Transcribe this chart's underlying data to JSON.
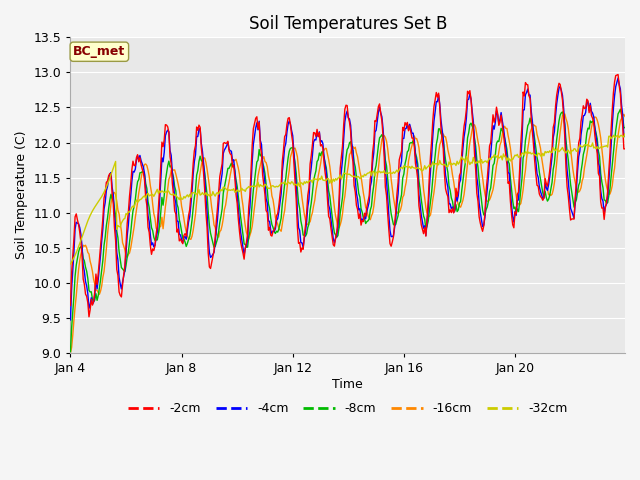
{
  "title": "Soil Temperatures Set B",
  "xlabel": "Time",
  "ylabel": "Soil Temperature (C)",
  "ylim": [
    9.0,
    13.5
  ],
  "yticks": [
    9.0,
    9.5,
    10.0,
    10.5,
    11.0,
    11.5,
    12.0,
    12.5,
    13.0,
    13.5
  ],
  "xtick_labels": [
    "Jan 4",
    "Jan 8",
    "Jan 12",
    "Jan 16",
    "Jan 20"
  ],
  "xtick_positions": [
    0,
    96,
    192,
    288,
    384
  ],
  "n_points": 480,
  "colors": {
    "-2cm": "#ff0000",
    "-4cm": "#0000ff",
    "-8cm": "#00bb00",
    "-16cm": "#ff8800",
    "-32cm": "#cccc00"
  },
  "legend_labels": [
    "-2cm",
    "-4cm",
    "-8cm",
    "-16cm",
    "-32cm"
  ],
  "annotation_text": "BC_met",
  "annotation_color": "#880000",
  "annotation_bg": "#ffffcc",
  "annotation_edge": "#999944",
  "fig_bg_color": "#f5f5f5",
  "plot_bg_color": "#e8e8e8",
  "grid_color": "#ffffff",
  "title_fontsize": 12,
  "label_fontsize": 9,
  "tick_fontsize": 9,
  "line_width": 1.0,
  "figsize": [
    6.4,
    4.8
  ],
  "dpi": 100
}
